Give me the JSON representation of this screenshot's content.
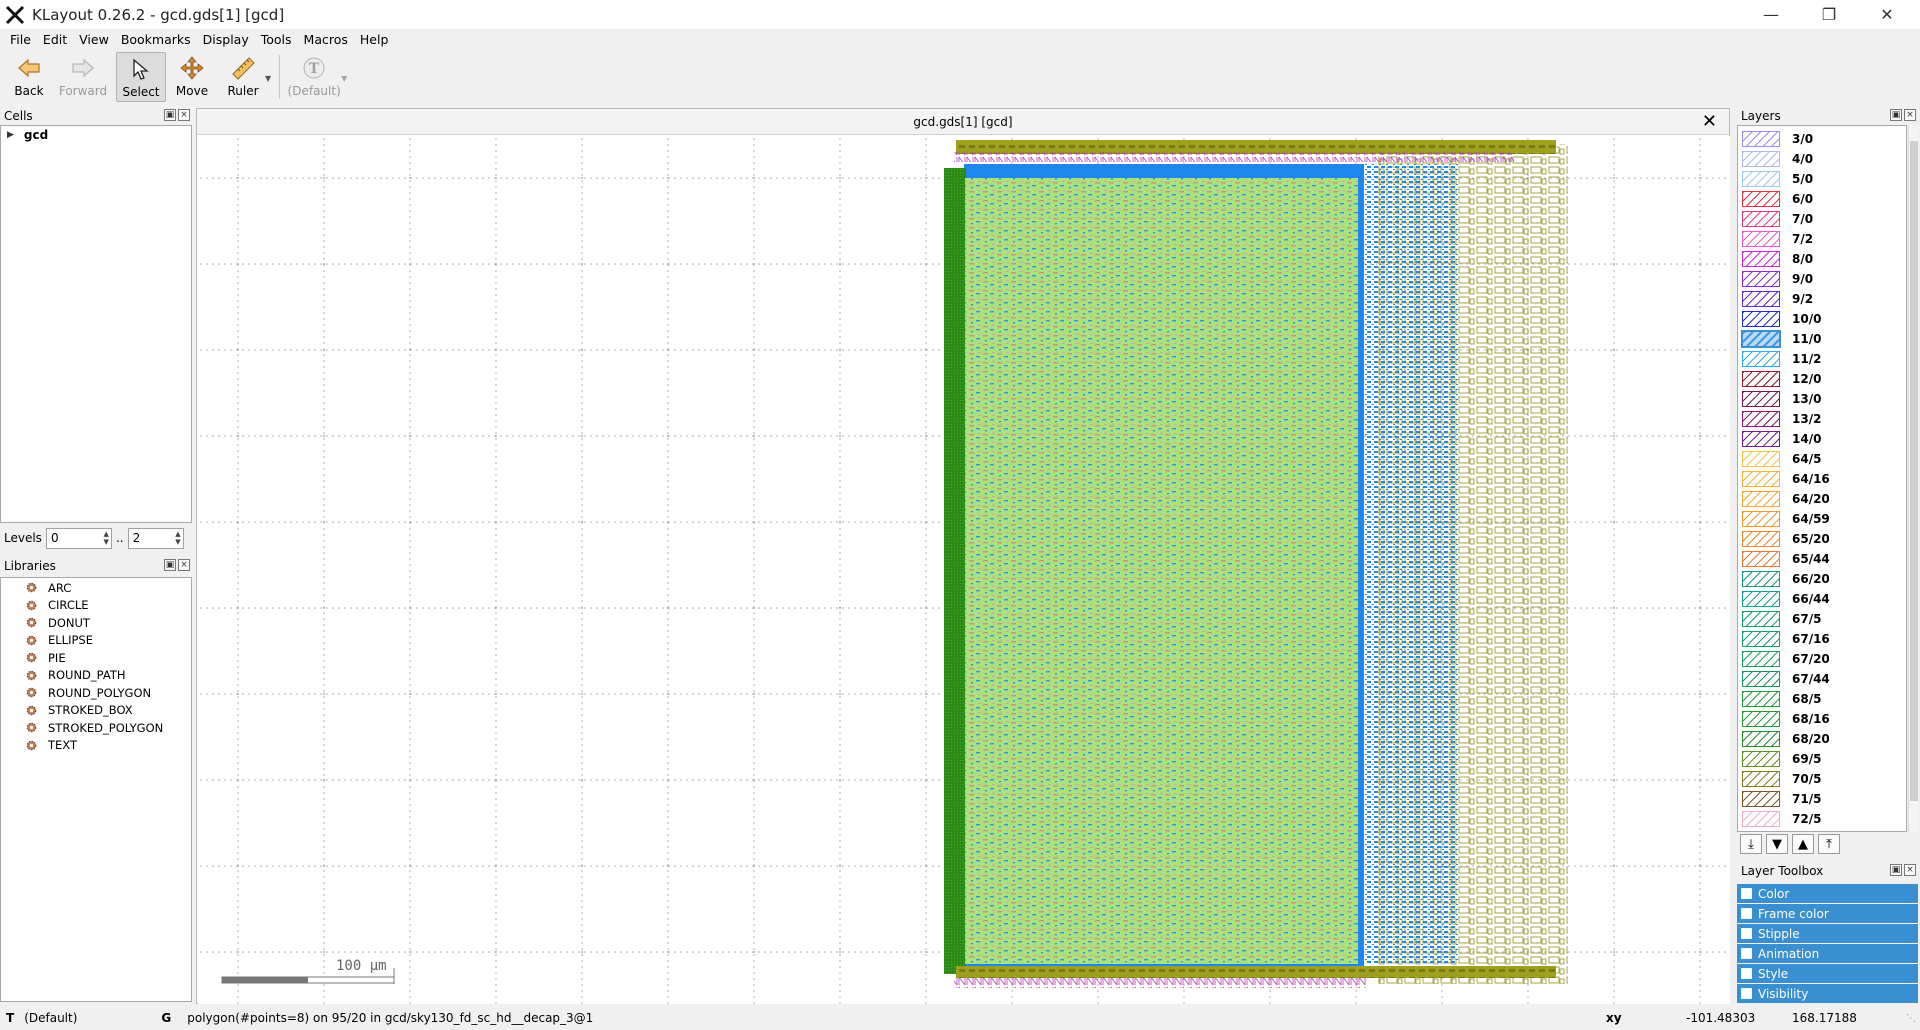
{
  "window": {
    "title": "KLayout 0.26.2 - gcd.gds[1] [gcd]"
  },
  "menu": [
    "File",
    "Edit",
    "View",
    "Bookmarks",
    "Display",
    "Tools",
    "Macros",
    "Help"
  ],
  "toolbar": {
    "back": "Back",
    "forward": "Forward",
    "select": "Select",
    "move": "Move",
    "ruler": "Ruler",
    "text_default": "(Default)"
  },
  "cells_panel": {
    "title": "Cells",
    "root_cell": "gcd"
  },
  "levels": {
    "label": "Levels",
    "from": "0",
    "sep": "..",
    "to": "2"
  },
  "libraries_panel": {
    "title": "Libraries",
    "items": [
      "ARC",
      "CIRCLE",
      "DONUT",
      "ELLIPSE",
      "PIE",
      "ROUND_PATH",
      "ROUND_POLYGON",
      "STROKED_BOX",
      "STROKED_POLYGON",
      "TEXT"
    ]
  },
  "view": {
    "tab_title": "gcd.gds[1] [gcd]",
    "scale_label": "100 µm"
  },
  "layers_panel": {
    "title": "Layers",
    "selected": "11/0",
    "items": [
      {
        "name": "3/0",
        "color": "#9b8ef0"
      },
      {
        "name": "4/0",
        "color": "#b0b8ee"
      },
      {
        "name": "5/0",
        "color": "#9cc8f4"
      },
      {
        "name": "6/0",
        "color": "#e6323c"
      },
      {
        "name": "7/0",
        "color": "#ea3c82"
      },
      {
        "name": "7/2",
        "color": "#e85ad2"
      },
      {
        "name": "8/0",
        "color": "#d228dc"
      },
      {
        "name": "9/0",
        "color": "#8a30d8"
      },
      {
        "name": "9/2",
        "color": "#6428d2"
      },
      {
        "name": "10/0",
        "color": "#2030c8"
      },
      {
        "name": "11/0",
        "color": "#3f9be6"
      },
      {
        "name": "11/2",
        "color": "#30a8e8"
      },
      {
        "name": "12/0",
        "color": "#8a1c2c"
      },
      {
        "name": "13/0",
        "color": "#7a1a52"
      },
      {
        "name": "13/2",
        "color": "#861a6e"
      },
      {
        "name": "14/0",
        "color": "#7a1c96"
      },
      {
        "name": "64/5",
        "color": "#f8c24a"
      },
      {
        "name": "64/16",
        "color": "#f6b238"
      },
      {
        "name": "64/20",
        "color": "#f4a630"
      },
      {
        "name": "64/59",
        "color": "#f09a2e"
      },
      {
        "name": "65/20",
        "color": "#ee8632"
      },
      {
        "name": "65/44",
        "color": "#ea7838"
      },
      {
        "name": "66/20",
        "color": "#1a9a86"
      },
      {
        "name": "66/44",
        "color": "#18a096"
      },
      {
        "name": "67/5",
        "color": "#1a9e78"
      },
      {
        "name": "67/16",
        "color": "#1c9a70"
      },
      {
        "name": "67/20",
        "color": "#20a068"
      },
      {
        "name": "67/44",
        "color": "#1e9462"
      },
      {
        "name": "68/5",
        "color": "#22a040"
      },
      {
        "name": "68/16",
        "color": "#2a9a38"
      },
      {
        "name": "68/20",
        "color": "#2a8e30"
      },
      {
        "name": "69/5",
        "color": "#6a8e28"
      },
      {
        "name": "70/5",
        "color": "#8a7e2a"
      },
      {
        "name": "71/5",
        "color": "#7a5a2a"
      },
      {
        "name": "72/5",
        "color": "#f4b0c0"
      }
    ]
  },
  "layer_toolbox": {
    "title": "Layer Toolbox",
    "items": [
      "Color",
      "Frame color",
      "Stipple",
      "Animation",
      "Style",
      "Visibility"
    ]
  },
  "status": {
    "mode": "T",
    "mode_text": "(Default)",
    "g": "G",
    "message": "polygon(#points=8) on 95/20 in gcd/sky130_fd_sc_hd__decap_3@1",
    "xy_label": "xy",
    "x": "-101.48303",
    "y": "168.17188"
  },
  "colors": {
    "core_fill": "#a8e07a",
    "metal_blue": "#1e88f0",
    "power_green": "#2a8a14",
    "label_olive": "#8a8a10",
    "pink_strap": "#b040b8",
    "accent": "#3a8fd0"
  }
}
